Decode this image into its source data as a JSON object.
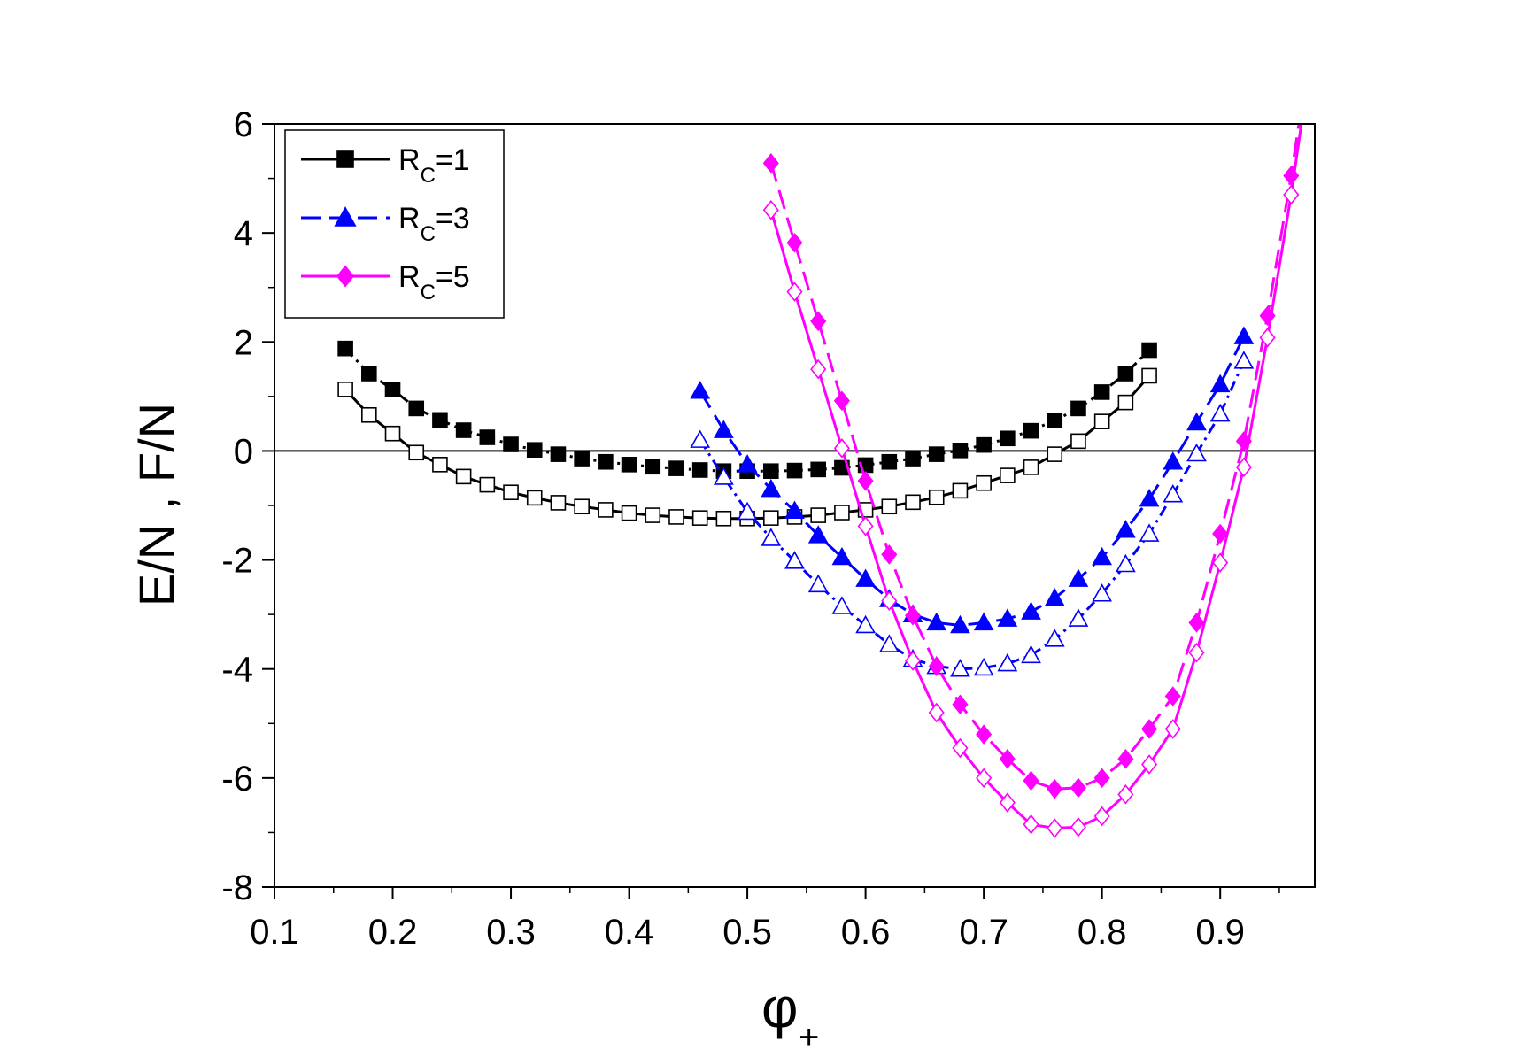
{
  "chart_data": {
    "type": "line",
    "xlabel": "φ",
    "xlabel_sub": "+",
    "ylabel": "E/N , F/N",
    "xlim": [
      0.1,
      0.98
    ],
    "ylim": [
      -8,
      6
    ],
    "xticks": [
      "0.1",
      "0.2",
      "0.3",
      "0.4",
      "0.5",
      "0.6",
      "0.7",
      "0.8",
      "0.9"
    ],
    "xtick_values": [
      0.1,
      0.2,
      0.3,
      0.4,
      0.5,
      0.6,
      0.7,
      0.8,
      0.9
    ],
    "yticks": [
      "-8",
      "-6",
      "-4",
      "-2",
      "0",
      "2",
      "4",
      "6"
    ],
    "ytick_values": [
      -8,
      -6,
      -4,
      -2,
      0,
      2,
      4,
      6
    ],
    "reference_line_y": 0,
    "legend_position": "top-left",
    "legend": [
      {
        "label_main": "R",
        "label_sub": "C",
        "label_rest": "=1",
        "color": "#000000",
        "marker": "square",
        "dash": "solid"
      },
      {
        "label_main": "R",
        "label_sub": "C",
        "label_rest": "=3",
        "color": "#0000ff",
        "marker": "triangle",
        "dash": "dashed"
      },
      {
        "label_main": "R",
        "label_sub": "C",
        "label_rest": "=5",
        "color": "#ff00ff",
        "marker": "diamond",
        "dash": "solid"
      }
    ],
    "series": [
      {
        "name": "E/N Rc=1",
        "color": "#000000",
        "marker": "square",
        "filled": true,
        "dash": "dashdot",
        "x": [
          0.16,
          0.18,
          0.2,
          0.22,
          0.24,
          0.26,
          0.28,
          0.3,
          0.32,
          0.34,
          0.36,
          0.38,
          0.4,
          0.42,
          0.44,
          0.46,
          0.48,
          0.5,
          0.52,
          0.54,
          0.56,
          0.58,
          0.6,
          0.62,
          0.64,
          0.66,
          0.68,
          0.7,
          0.72,
          0.74,
          0.76,
          0.78,
          0.8,
          0.82,
          0.84
        ],
        "y": [
          1.88,
          1.42,
          1.13,
          0.78,
          0.57,
          0.38,
          0.25,
          0.12,
          0.02,
          -0.06,
          -0.14,
          -0.2,
          -0.25,
          -0.29,
          -0.32,
          -0.35,
          -0.37,
          -0.37,
          -0.37,
          -0.36,
          -0.34,
          -0.31,
          -0.26,
          -0.2,
          -0.14,
          -0.06,
          0.01,
          0.11,
          0.23,
          0.37,
          0.56,
          0.78,
          1.08,
          1.42,
          1.85
        ]
      },
      {
        "name": "F/N Rc=1",
        "color": "#000000",
        "marker": "square",
        "filled": false,
        "dash": "solid",
        "x": [
          0.16,
          0.18,
          0.2,
          0.22,
          0.24,
          0.26,
          0.28,
          0.3,
          0.32,
          0.34,
          0.36,
          0.38,
          0.4,
          0.42,
          0.44,
          0.46,
          0.48,
          0.5,
          0.52,
          0.54,
          0.56,
          0.58,
          0.6,
          0.62,
          0.64,
          0.66,
          0.68,
          0.7,
          0.72,
          0.74,
          0.76,
          0.78,
          0.8,
          0.82,
          0.84
        ],
        "y": [
          1.13,
          0.66,
          0.32,
          -0.03,
          -0.25,
          -0.47,
          -0.62,
          -0.76,
          -0.86,
          -0.95,
          -1.02,
          -1.08,
          -1.14,
          -1.18,
          -1.21,
          -1.23,
          -1.24,
          -1.24,
          -1.23,
          -1.21,
          -1.18,
          -1.13,
          -1.08,
          -1.02,
          -0.94,
          -0.85,
          -0.73,
          -0.59,
          -0.45,
          -0.3,
          -0.06,
          0.18,
          0.54,
          0.89,
          1.38
        ]
      },
      {
        "name": "E/N Rc=3",
        "color": "#0000ff",
        "marker": "triangle",
        "filled": true,
        "dash": "dashed",
        "x": [
          0.46,
          0.48,
          0.5,
          0.52,
          0.54,
          0.56,
          0.58,
          0.6,
          0.62,
          0.64,
          0.66,
          0.68,
          0.7,
          0.72,
          0.74,
          0.76,
          0.78,
          0.8,
          0.82,
          0.84,
          0.86,
          0.88,
          0.9,
          0.92
        ],
        "y": [
          1.1,
          0.38,
          -0.25,
          -0.7,
          -1.1,
          -1.55,
          -1.95,
          -2.35,
          -2.72,
          -3.0,
          -3.15,
          -3.2,
          -3.15,
          -3.08,
          -2.95,
          -2.7,
          -2.35,
          -1.95,
          -1.45,
          -0.88,
          -0.2,
          0.52,
          1.22,
          2.1
        ]
      },
      {
        "name": "F/N Rc=3",
        "color": "#0000ff",
        "marker": "triangle",
        "filled": false,
        "dash": "dashdot",
        "x": [
          0.46,
          0.48,
          0.5,
          0.52,
          0.54,
          0.56,
          0.58,
          0.6,
          0.62,
          0.64,
          0.66,
          0.68,
          0.7,
          0.72,
          0.74,
          0.76,
          0.78,
          0.8,
          0.82,
          0.84,
          0.86,
          0.88,
          0.9,
          0.92
        ],
        "y": [
          0.2,
          -0.48,
          -1.12,
          -1.6,
          -2.02,
          -2.45,
          -2.85,
          -3.2,
          -3.55,
          -3.82,
          -3.95,
          -4.0,
          -3.98,
          -3.9,
          -3.75,
          -3.45,
          -3.08,
          -2.62,
          -2.08,
          -1.52,
          -0.8,
          -0.05,
          0.68,
          1.65
        ]
      },
      {
        "name": "E/N Rc=5",
        "color": "#ff00ff",
        "marker": "diamond",
        "filled": true,
        "dash": "dashed",
        "x": [
          0.52,
          0.54,
          0.56,
          0.58,
          0.6,
          0.62,
          0.64,
          0.66,
          0.68,
          0.7,
          0.72,
          0.74,
          0.76,
          0.78,
          0.8,
          0.82,
          0.84,
          0.86,
          0.88,
          0.9,
          0.92,
          0.94,
          0.96,
          0.97
        ],
        "y": [
          5.28,
          3.82,
          2.38,
          0.92,
          -0.55,
          -1.9,
          -3.02,
          -3.95,
          -4.65,
          -5.2,
          -5.65,
          -6.05,
          -6.2,
          -6.18,
          -6.0,
          -5.65,
          -5.1,
          -4.5,
          -3.15,
          -1.52,
          0.18,
          2.48,
          5.05,
          6.5
        ]
      },
      {
        "name": "F/N Rc=5",
        "color": "#ff00ff",
        "marker": "diamond",
        "filled": false,
        "dash": "solid",
        "x": [
          0.52,
          0.54,
          0.56,
          0.58,
          0.6,
          0.62,
          0.64,
          0.66,
          0.68,
          0.7,
          0.72,
          0.74,
          0.76,
          0.78,
          0.8,
          0.82,
          0.84,
          0.86,
          0.88,
          0.9,
          0.92,
          0.94,
          0.96,
          0.97
        ],
        "y": [
          4.42,
          2.92,
          1.5,
          0.05,
          -1.38,
          -2.75,
          -3.85,
          -4.8,
          -5.45,
          -6.0,
          -6.45,
          -6.85,
          -6.92,
          -6.9,
          -6.7,
          -6.3,
          -5.75,
          -5.1,
          -3.7,
          -2.05,
          -0.3,
          2.08,
          4.7,
          6.2
        ]
      }
    ]
  }
}
